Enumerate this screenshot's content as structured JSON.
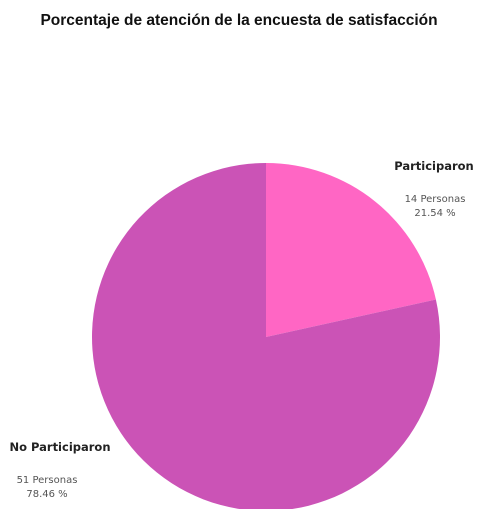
{
  "chart_data": {
    "type": "pie",
    "title": "Porcentaje de atención de la encuesta de satisfacción",
    "slices": [
      {
        "label": "Participaron",
        "count_label": "14 Personas",
        "percent_label": "21.54 %",
        "value": 14,
        "percent": 21.54,
        "color": "#ff66c4"
      },
      {
        "label": "No Participaron",
        "count_label": "51 Personas",
        "percent_label": "78.46 %",
        "value": 51,
        "percent": 78.46,
        "color": "#cb53b6"
      }
    ]
  }
}
